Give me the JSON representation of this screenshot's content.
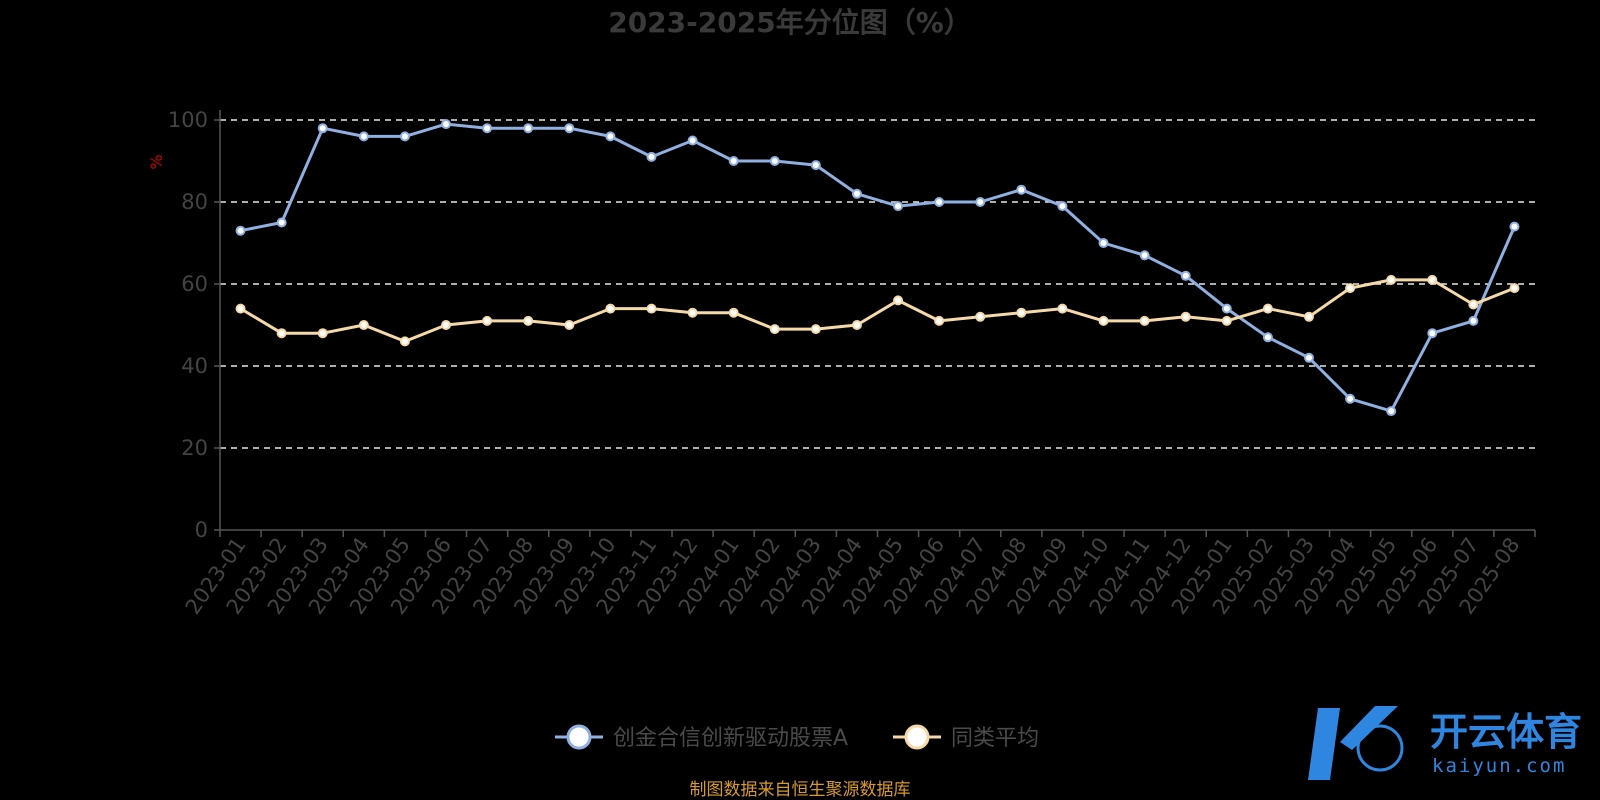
{
  "chart_data": {
    "type": "line",
    "title": "2023-2025年分位图（%）",
    "ylabel": "%",
    "xlabel": "",
    "ylim": [
      0,
      100
    ],
    "yticks": [
      0,
      20,
      40,
      60,
      80,
      100
    ],
    "grid": true,
    "legend_position": "bottom",
    "categories": [
      "2023-01",
      "2023-02",
      "2023-03",
      "2023-04",
      "2023-05",
      "2023-06",
      "2023-07",
      "2023-08",
      "2023-09",
      "2023-10",
      "2023-11",
      "2023-12",
      "2024-01",
      "2024-02",
      "2024-03",
      "2024-04",
      "2024-05",
      "2024-06",
      "2024-07",
      "2024-08",
      "2024-09",
      "2024-10",
      "2024-11",
      "2024-12",
      "2025-01",
      "2025-02",
      "2025-03",
      "2025-04",
      "2025-05",
      "2025-06",
      "2025-07",
      "2025-08"
    ],
    "series": [
      {
        "name": "创金合信创新驱动股票A",
        "color": "#8fb0e0",
        "values": [
          73,
          75,
          98,
          96,
          96,
          99,
          98,
          98,
          98,
          96,
          91,
          95,
          90,
          90,
          89,
          82,
          79,
          80,
          80,
          83,
          79,
          70,
          67,
          62,
          54,
          47,
          42,
          32,
          29,
          48,
          51,
          74
        ]
      },
      {
        "name": "同类平均",
        "color": "#f5d9a8",
        "values": [
          54,
          48,
          48,
          50,
          46,
          50,
          51,
          51,
          50,
          54,
          54,
          53,
          53,
          49,
          49,
          50,
          56,
          51,
          52,
          53,
          54,
          51,
          51,
          52,
          51,
          54,
          52,
          59,
          61,
          61,
          55,
          59
        ]
      }
    ]
  },
  "source_note": "制图数据来自恒生聚源数据库",
  "watermark": {
    "brand": "开云体育",
    "domain": "kaiyun.com"
  }
}
